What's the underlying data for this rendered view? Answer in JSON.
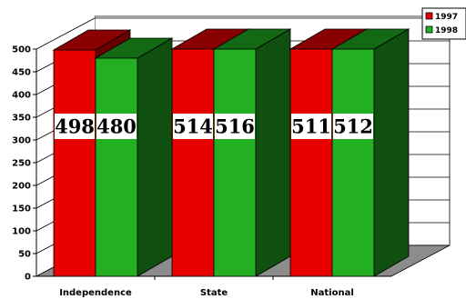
{
  "chart_data": {
    "type": "bar",
    "categories": [
      "Independence",
      "State",
      "National"
    ],
    "series": [
      {
        "name": "1997",
        "values": [
          498,
          514,
          511
        ],
        "color": "#e60000"
      },
      {
        "name": "1998",
        "values": [
          480,
          516,
          512
        ],
        "color": "#22b022"
      }
    ],
    "ylim": [
      0,
      500
    ],
    "yticks": [
      0,
      50,
      100,
      150,
      200,
      250,
      300,
      350,
      400,
      450,
      500
    ],
    "grid": true,
    "legend_position": "top-right",
    "three_d": true
  }
}
